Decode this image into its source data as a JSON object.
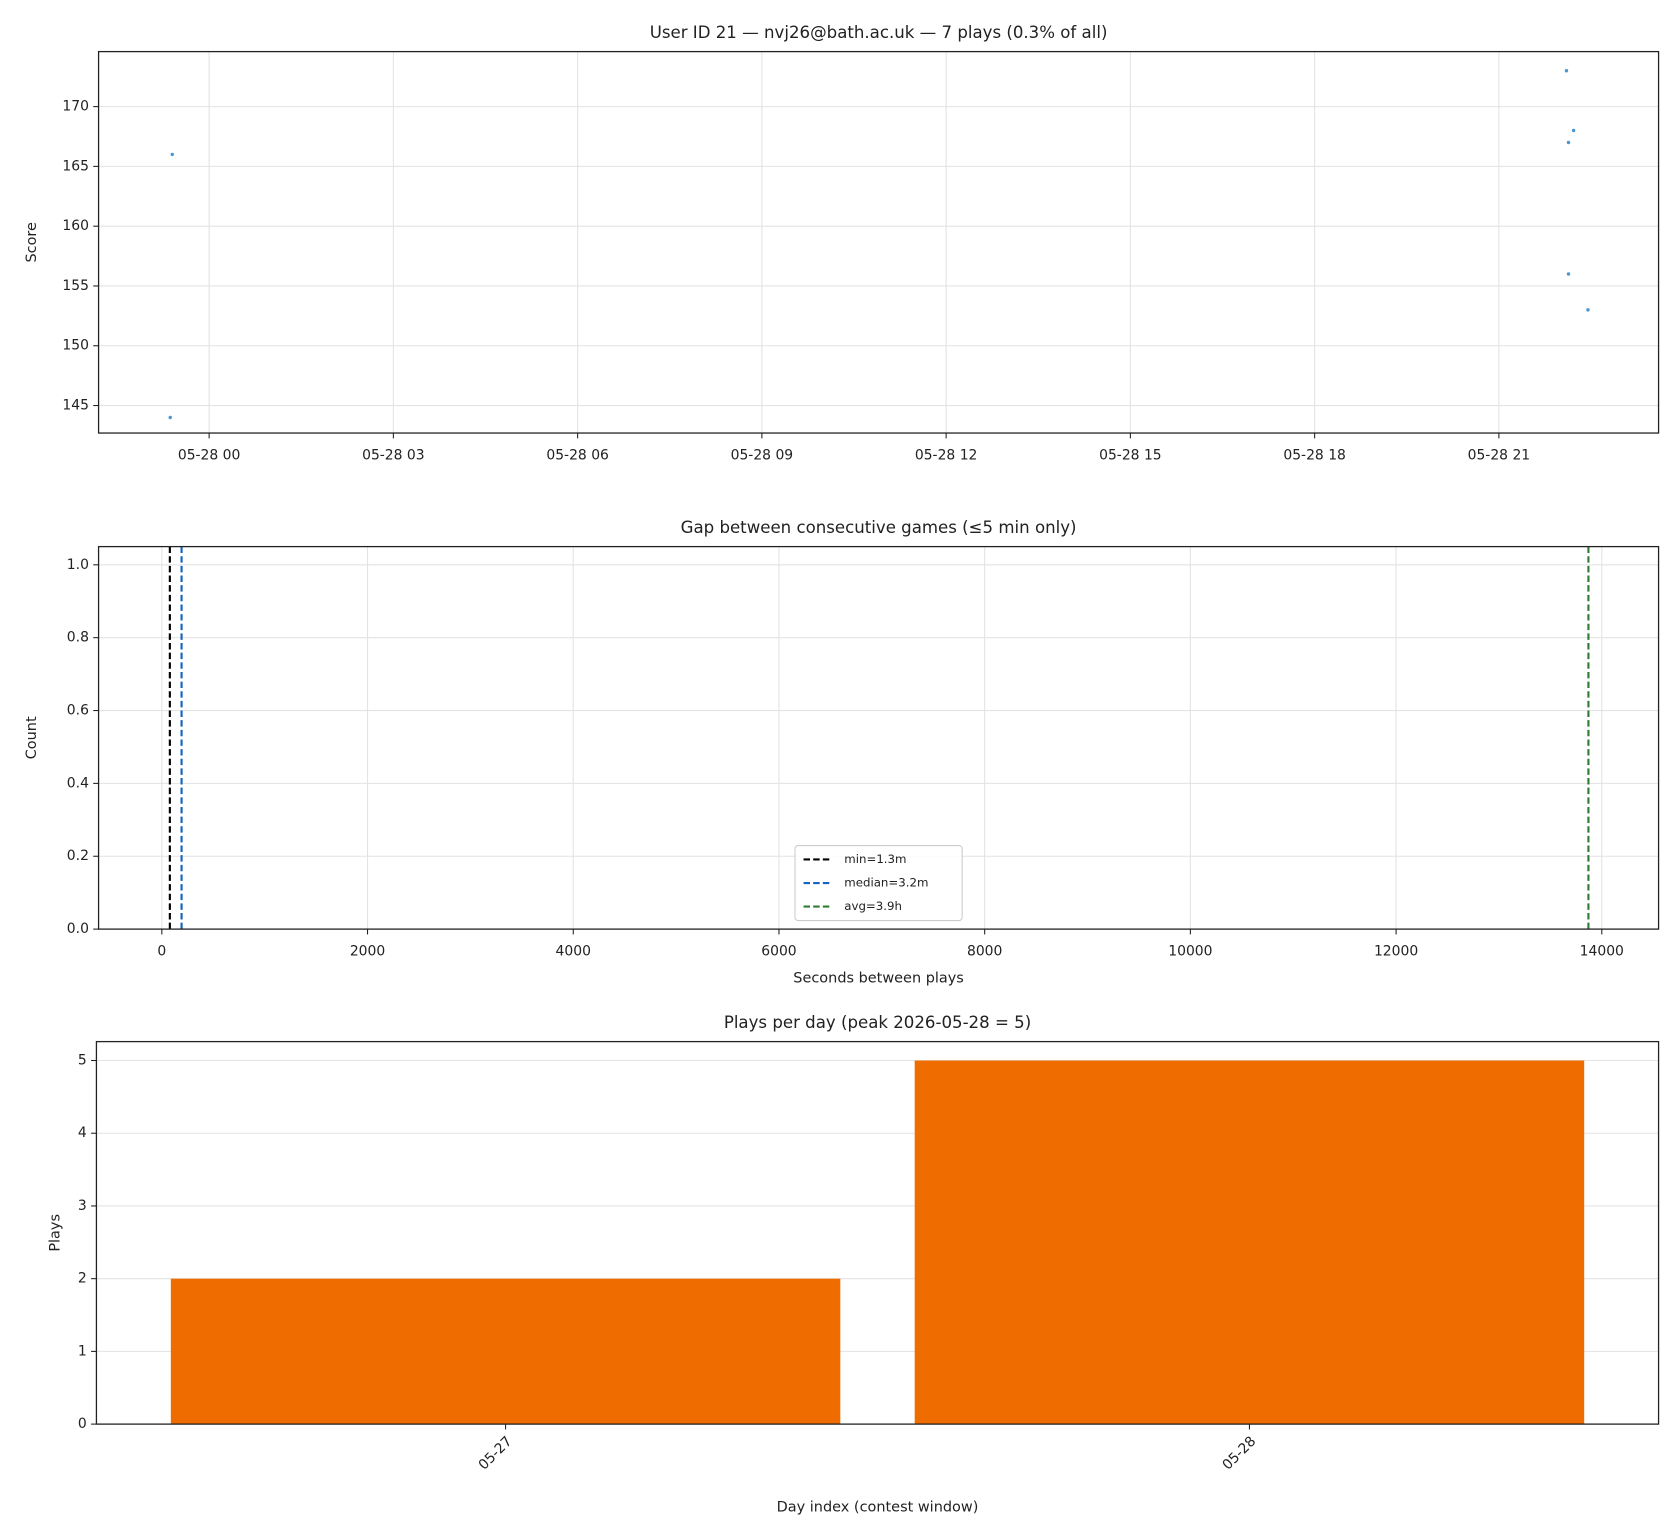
{
  "chart_data": [
    {
      "type": "scatter",
      "title": "User ID 21 — nvj26@bath.ac.uk — 7 plays (0.3% of all)",
      "ylabel": "Score",
      "x": [
        "05-27 23:22",
        "05-27 23:24",
        "05-28 22:06",
        "05-28 22:08",
        "05-28 22:08",
        "05-28 22:13",
        "05-28 22:27"
      ],
      "values": [
        144,
        166,
        173,
        167,
        156,
        168,
        153
      ],
      "color": "#4c97d0",
      "xlim": [
        "05-27 22:12",
        "05-28 23:36"
      ],
      "xticks": [
        "05-28 00",
        "05-28 03",
        "05-28 06",
        "05-28 09",
        "05-28 12",
        "05-28 15",
        "05-28 18",
        "05-28 21"
      ],
      "ylim": [
        142.7,
        174.6
      ],
      "yticks": [
        145,
        150,
        155,
        160,
        165,
        170
      ],
      "grid": true
    },
    {
      "type": "vlines",
      "title": "Gap between consecutive games (≤5 min only)",
      "xlabel": "Seconds between plays",
      "ylabel": "Count",
      "lines": [
        {
          "name": "min=1.3m",
          "color": "#000000",
          "x": 78
        },
        {
          "name": "median=3.2m",
          "color": "#1565c0",
          "x": 192
        },
        {
          "name": "avg=3.9h",
          "color": "#2e7d32",
          "x": 13870
        }
      ],
      "xlim": [
        -615,
        14552
      ],
      "xticks": [
        0,
        2000,
        4000,
        6000,
        8000,
        10000,
        12000,
        14000
      ],
      "ylim": [
        0,
        1.05
      ],
      "yticks": [
        {
          "value": 0,
          "label": "0.0"
        },
        {
          "value": 0.2,
          "label": "0.2"
        },
        {
          "value": 0.4,
          "label": "0.4"
        },
        {
          "value": 0.6,
          "label": "0.6"
        },
        {
          "value": 0.8,
          "label": "0.8"
        },
        {
          "value": 1,
          "label": "1.0"
        }
      ],
      "grid": true,
      "legend": "lower center"
    },
    {
      "type": "bar",
      "title": "Plays per day (peak 2026-05-28 = 5)",
      "xlabel": "Day index (contest window)",
      "ylabel": "Plays",
      "categories": [
        "05-27",
        "05-28"
      ],
      "values": [
        2,
        5
      ],
      "color": "#ef6c00",
      "ylim": [
        0,
        5.26
      ],
      "yticks": [
        0,
        1,
        2,
        3,
        4,
        5
      ],
      "grid": true
    }
  ]
}
